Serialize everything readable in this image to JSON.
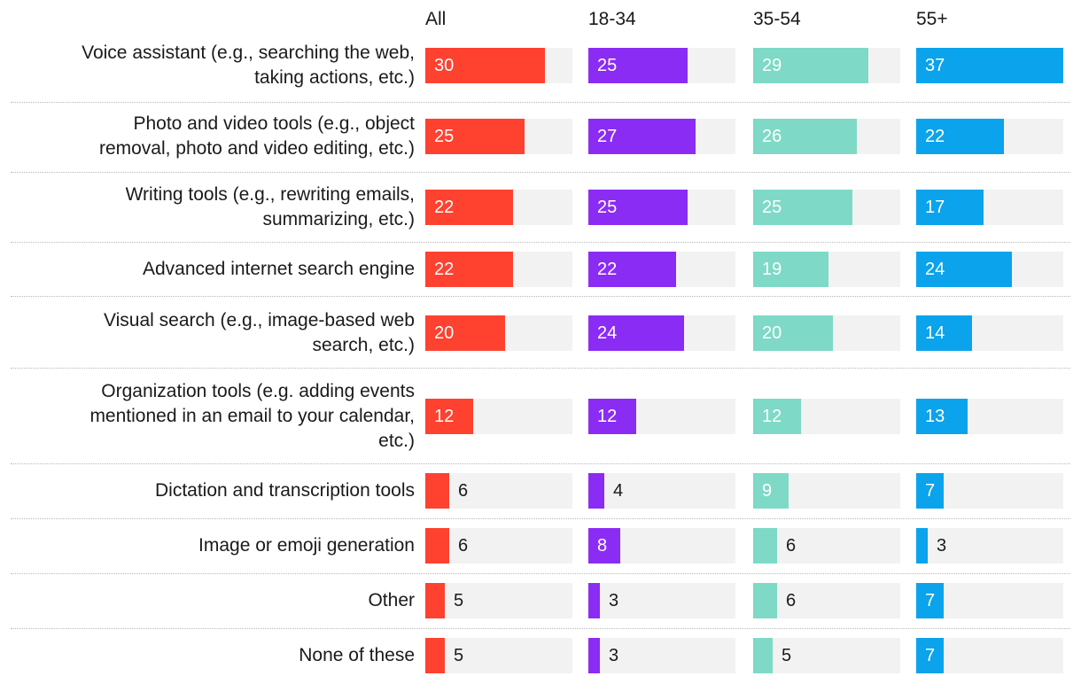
{
  "chart_data": {
    "type": "bar",
    "orientation": "horizontal",
    "title": "",
    "xlim": [
      0,
      37
    ],
    "grid": false,
    "categories": [
      "Voice assistant (e.g., searching the web, taking actions, etc.)",
      "Photo and video tools (e.g., object removal, photo and video editing, etc.)",
      "Writing tools (e.g., rewriting emails, summarizing, etc.)",
      "Advanced internet search engine",
      "Visual search (e.g., image-based web search, etc.)",
      "Organization tools (e.g. adding events mentioned in an email to your calendar, etc.)",
      "Dictation and transcription tools",
      "Image or emoji generation",
      "Other",
      "None of these"
    ],
    "series": [
      {
        "name": "All",
        "color": "#ff4130",
        "values": [
          30,
          25,
          22,
          22,
          20,
          12,
          6,
          6,
          5,
          5
        ]
      },
      {
        "name": "18-34",
        "color": "#8b2cf5",
        "values": [
          25,
          27,
          25,
          22,
          24,
          12,
          4,
          8,
          3,
          3
        ]
      },
      {
        "name": "35-54",
        "color": "#7ed9c6",
        "values": [
          29,
          26,
          25,
          19,
          20,
          12,
          9,
          6,
          6,
          5
        ]
      },
      {
        "name": "55+",
        "color": "#0aa3ec",
        "values": [
          37,
          22,
          17,
          24,
          14,
          13,
          7,
          3,
          7,
          7
        ]
      }
    ]
  }
}
